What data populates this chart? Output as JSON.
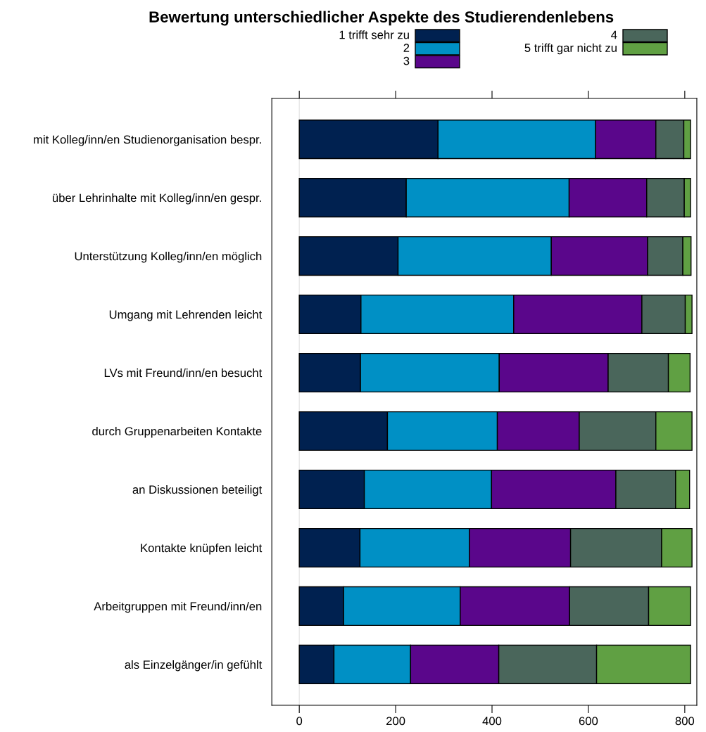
{
  "chart_data": {
    "type": "bar",
    "orientation": "horizontal",
    "stacked": true,
    "title": "Bewertung unterschiedlicher Aspekte des Studierendenlebens",
    "categories": [
      "mit Kolleg/inn/en Studienorganisation bespr.",
      "über Lehrinhalte mit Kolleg/inn/en gespr.",
      "Unterstützung Kolleg/inn/en möglich",
      "Umgang mit Lehrenden leicht",
      "LVs mit Freund/inn/en besucht",
      "durch Gruppenarbeiten Kontakte",
      "an Diskussionen beteiligt",
      "Kontakte knüpfen leicht",
      "Arbeitgruppen mit Freund/inn/en",
      "als Einzelgänger/in gefühlt"
    ],
    "series": [
      {
        "name": "1 trifft sehr zu",
        "color": "#002150",
        "values": [
          288,
          222,
          205,
          128,
          127,
          183,
          135,
          126,
          92,
          72
        ]
      },
      {
        "name": "2",
        "color": "#0090c5",
        "values": [
          327,
          338,
          318,
          317,
          288,
          228,
          264,
          227,
          242,
          159
        ]
      },
      {
        "name": "3",
        "color": "#5a068b",
        "values": [
          125,
          161,
          200,
          266,
          226,
          170,
          258,
          210,
          227,
          183
        ]
      },
      {
        "name": "4",
        "color": "#4a665b",
        "values": [
          58,
          78,
          73,
          90,
          125,
          159,
          124,
          189,
          164,
          203
        ]
      },
      {
        "name": "5 trifft gar nicht zu",
        "color": "#60a043",
        "values": [
          14,
          13,
          17,
          14,
          45,
          75,
          29,
          63,
          87,
          195
        ]
      }
    ],
    "xlim": [
      -57,
      825
    ],
    "xticks": [
      0,
      200,
      400,
      600,
      800
    ],
    "ref_lines": [
      {
        "axis": "x",
        "value": 0,
        "color": "#e6e6e6"
      }
    ],
    "grid": false,
    "legend": "top"
  }
}
